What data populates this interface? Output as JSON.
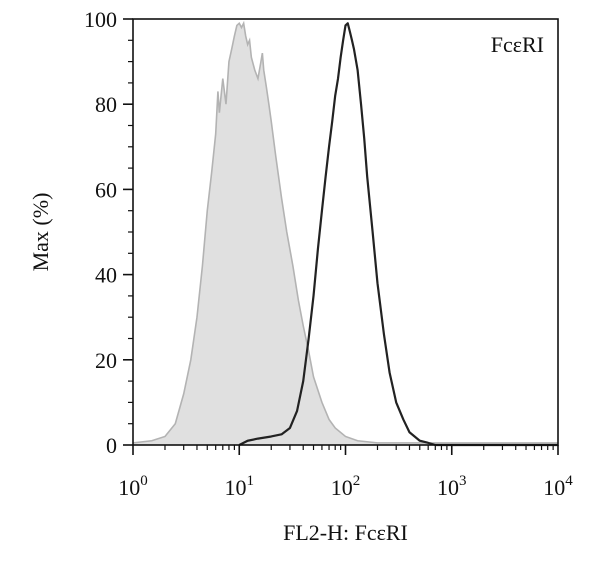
{
  "chart_data": {
    "type": "area",
    "xlabel": "FL2-H: FcεRI",
    "ylabel": "Max (%)",
    "annotation": "FcεRI",
    "x_scale": "log",
    "xlim": [
      1,
      10000
    ],
    "ylim": [
      0,
      100
    ],
    "x_ticks": [
      {
        "value": 1,
        "base": "10",
        "exp": "0"
      },
      {
        "value": 10,
        "base": "10",
        "exp": "1"
      },
      {
        "value": 100,
        "base": "10",
        "exp": "2"
      },
      {
        "value": 1000,
        "base": "10",
        "exp": "3"
      },
      {
        "value": 10000,
        "base": "10",
        "exp": "4"
      }
    ],
    "y_ticks": [
      {
        "value": 0,
        "label": "0"
      },
      {
        "value": 20,
        "label": "20"
      },
      {
        "value": 40,
        "label": "40"
      },
      {
        "value": 60,
        "label": "60"
      },
      {
        "value": 80,
        "label": "80"
      },
      {
        "value": 100,
        "label": "100"
      }
    ],
    "grid": false,
    "series": [
      {
        "style": "filled",
        "fill_color": "#e0e0e0",
        "line_color": "#b3b3b3",
        "points": [
          [
            1,
            0.5
          ],
          [
            1.5,
            1
          ],
          [
            2,
            2
          ],
          [
            2.5,
            5
          ],
          [
            3,
            12
          ],
          [
            3.5,
            20
          ],
          [
            4,
            30
          ],
          [
            4.5,
            42
          ],
          [
            5,
            55
          ],
          [
            5.5,
            64
          ],
          [
            6,
            73
          ],
          [
            6.3,
            83
          ],
          [
            6.5,
            78
          ],
          [
            7,
            86
          ],
          [
            7.5,
            80
          ],
          [
            8,
            90
          ],
          [
            8.5,
            93
          ],
          [
            9,
            96
          ],
          [
            9.5,
            98.5
          ],
          [
            10,
            99
          ],
          [
            10.5,
            98
          ],
          [
            11,
            99
          ],
          [
            11.5,
            96
          ],
          [
            12,
            94
          ],
          [
            12.5,
            95
          ],
          [
            13,
            91
          ],
          [
            14,
            88
          ],
          [
            15,
            86
          ],
          [
            16,
            90
          ],
          [
            16.5,
            92
          ],
          [
            17,
            88
          ],
          [
            18,
            84
          ],
          [
            19,
            80
          ],
          [
            20,
            76
          ],
          [
            22,
            68
          ],
          [
            25,
            58
          ],
          [
            28,
            50
          ],
          [
            32,
            42
          ],
          [
            36,
            34
          ],
          [
            40,
            28
          ],
          [
            45,
            22
          ],
          [
            50,
            16
          ],
          [
            60,
            10
          ],
          [
            70,
            6
          ],
          [
            80,
            4
          ],
          [
            100,
            2
          ],
          [
            130,
            1
          ],
          [
            200,
            0.5
          ],
          [
            10000,
            0.5
          ]
        ]
      },
      {
        "style": "line",
        "line_color": "#222222",
        "points": [
          [
            10,
            0
          ],
          [
            12,
            1
          ],
          [
            15,
            1.5
          ],
          [
            20,
            2
          ],
          [
            25,
            2.5
          ],
          [
            30,
            4
          ],
          [
            35,
            8
          ],
          [
            40,
            15
          ],
          [
            45,
            25
          ],
          [
            50,
            35
          ],
          [
            55,
            46
          ],
          [
            60,
            55
          ],
          [
            65,
            63
          ],
          [
            70,
            70
          ],
          [
            75,
            76
          ],
          [
            80,
            82
          ],
          [
            85,
            86
          ],
          [
            90,
            91
          ],
          [
            95,
            95
          ],
          [
            100,
            98.5
          ],
          [
            105,
            99
          ],
          [
            110,
            97
          ],
          [
            115,
            95
          ],
          [
            120,
            93
          ],
          [
            130,
            88
          ],
          [
            140,
            80
          ],
          [
            150,
            72
          ],
          [
            160,
            63
          ],
          [
            180,
            50
          ],
          [
            200,
            38
          ],
          [
            230,
            26
          ],
          [
            260,
            17
          ],
          [
            300,
            10
          ],
          [
            350,
            6
          ],
          [
            400,
            3
          ],
          [
            500,
            1
          ],
          [
            600,
            0.5
          ],
          [
            700,
            0
          ],
          [
            10000,
            0
          ]
        ]
      }
    ]
  }
}
